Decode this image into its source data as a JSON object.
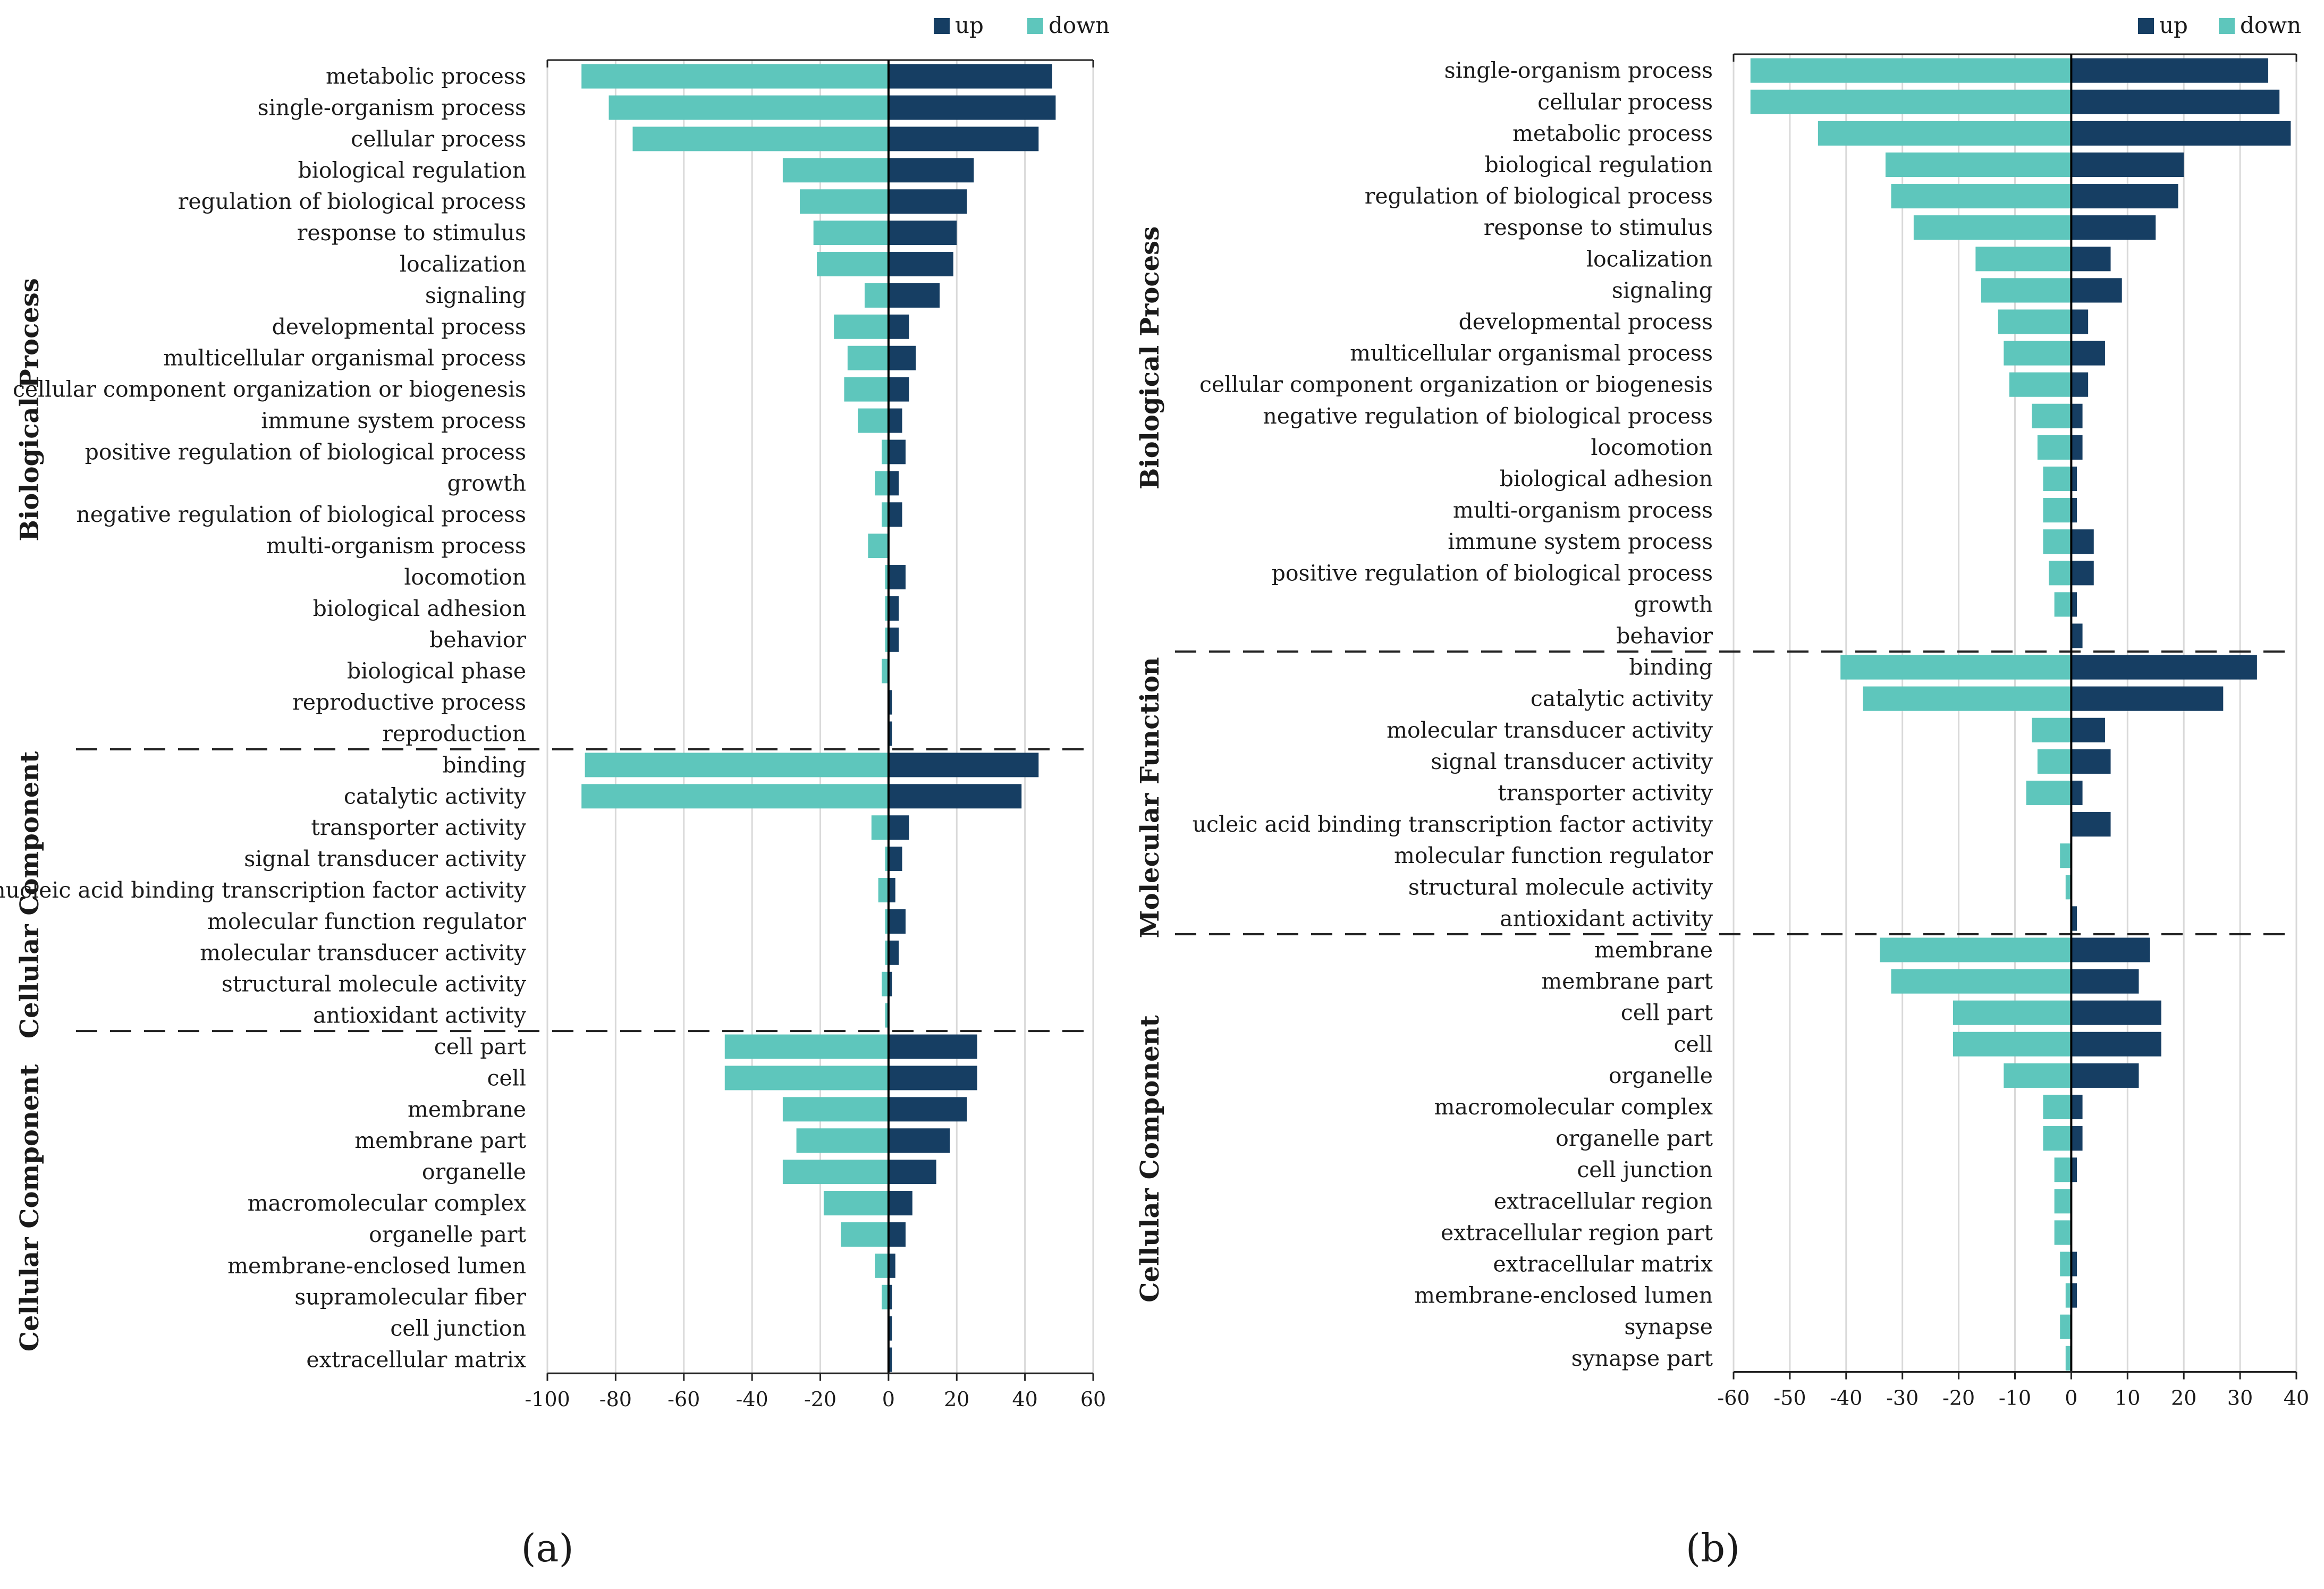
{
  "colors": {
    "up": "#163e63",
    "down": "#5ec6bc"
  },
  "chart_data": [
    {
      "type": "bar",
      "orientation": "horizontal",
      "caption": "(a)",
      "caption_letter": "a",
      "legend": [
        {
          "key": "up",
          "label": "up"
        },
        {
          "key": "down",
          "label": "down"
        }
      ],
      "legend_position": "top-right",
      "xlim": [
        -100,
        60
      ],
      "xticks": [
        -100,
        -80,
        -60,
        -40,
        -20,
        0,
        20,
        40,
        60
      ],
      "grid": true,
      "groups": [
        {
          "label": "Biological Process",
          "categories": [
            "metabolic process",
            "single-organism process",
            "cellular process",
            "biological regulation",
            "regulation of biological process",
            "response to stimulus",
            "localization",
            "signaling",
            "developmental process",
            "multicellular organismal process",
            "cellular component organization or biogenesis",
            "immune system process",
            "positive regulation of biological process",
            "growth",
            "negative regulation of biological process",
            "multi-organism process",
            "locomotion",
            "biological adhesion",
            "behavior",
            "biological phase",
            "reproductive process",
            "reproduction"
          ],
          "up": [
            48,
            49,
            44,
            25,
            23,
            20,
            19,
            15,
            6,
            8,
            6,
            4,
            5,
            3,
            4,
            0,
            5,
            3,
            3,
            0,
            1,
            1
          ],
          "down": [
            -90,
            -82,
            -75,
            -31,
            -26,
            -22,
            -21,
            -7,
            -16,
            -12,
            -13,
            -9,
            -2,
            -4,
            -2,
            -6,
            -1,
            -1,
            -1,
            -2,
            0,
            0
          ]
        },
        {
          "label": "Cellular Component",
          "categories": [
            "binding",
            "catalytic activity",
            "transporter activity",
            "signal transducer activity",
            "nucleic acid binding transcription factor activity",
            "molecular function regulator",
            "molecular transducer activity",
            "structural molecule activity",
            "antioxidant activity"
          ],
          "up": [
            44,
            39,
            6,
            4,
            2,
            5,
            3,
            1,
            0
          ],
          "down": [
            -89,
            -90,
            -5,
            -1,
            -3,
            -1,
            -1,
            -2,
            -1
          ]
        },
        {
          "label": "Cellular Component",
          "categories": [
            "cell part",
            "cell",
            "membrane",
            "membrane part",
            "organelle",
            "macromolecular complex",
            "organelle part",
            "membrane-enclosed lumen",
            "supramolecular fiber",
            "cell junction",
            "extracellular matrix"
          ],
          "up": [
            26,
            26,
            23,
            18,
            14,
            7,
            5,
            2,
            1,
            1,
            1
          ],
          "down": [
            -48,
            -48,
            -31,
            -27,
            -31,
            -19,
            -14,
            -4,
            -2,
            0,
            0
          ]
        }
      ]
    },
    {
      "type": "bar",
      "orientation": "horizontal",
      "caption": "(b)",
      "caption_letter": "b",
      "legend": [
        {
          "key": "up",
          "label": "up"
        },
        {
          "key": "down",
          "label": "down"
        }
      ],
      "legend_position": "top-right",
      "xlim": [
        -60,
        40
      ],
      "xticks": [
        -60,
        -50,
        -40,
        -30,
        -20,
        -10,
        0,
        10,
        20,
        30,
        40
      ],
      "grid": true,
      "groups": [
        {
          "label": "Biological Process",
          "categories": [
            "single-organism process",
            "cellular process",
            "metabolic process",
            "biological regulation",
            "regulation of biological process",
            "response to stimulus",
            "localization",
            "signaling",
            "developmental process",
            "multicellular organismal process",
            "cellular component organization or biogenesis",
            "negative regulation of biological process",
            "locomotion",
            "biological adhesion",
            "multi-organism process",
            "immune system process",
            "positive regulation of biological process",
            "growth",
            "behavior"
          ],
          "up": [
            35,
            37,
            39,
            20,
            19,
            15,
            7,
            9,
            3,
            6,
            3,
            2,
            2,
            1,
            1,
            4,
            4,
            1,
            2
          ],
          "down": [
            -57,
            -57,
            -45,
            -33,
            -32,
            -28,
            -17,
            -16,
            -13,
            -12,
            -11,
            -7,
            -6,
            -5,
            -5,
            -5,
            -4,
            -3,
            0
          ]
        },
        {
          "label": "Molecular Function",
          "categories": [
            "binding",
            "catalytic activity",
            "molecular transducer activity",
            "signal transducer activity",
            "transporter activity",
            "ucleic acid binding transcription factor activity",
            "molecular function regulator",
            "structural molecule activity",
            "antioxidant activity"
          ],
          "up": [
            33,
            27,
            6,
            7,
            2,
            7,
            0,
            0,
            1
          ],
          "down": [
            -41,
            -37,
            -7,
            -6,
            -8,
            0,
            -2,
            -1,
            0
          ]
        },
        {
          "label": "Cellular Component",
          "categories": [
            "membrane",
            "membrane part",
            "cell part",
            "cell",
            "organelle",
            "macromolecular complex",
            "organelle part",
            "cell junction",
            "extracellular region",
            "extracellular region part",
            "extracellular matrix",
            "membrane-enclosed lumen",
            "synapse",
            "synapse part"
          ],
          "up": [
            14,
            12,
            16,
            16,
            12,
            2,
            2,
            1,
            0,
            0,
            1,
            1,
            0,
            0
          ],
          "down": [
            -34,
            -32,
            -21,
            -21,
            -12,
            -5,
            -5,
            -3,
            -3,
            -3,
            -2,
            -1,
            -2,
            -1
          ]
        }
      ]
    }
  ]
}
